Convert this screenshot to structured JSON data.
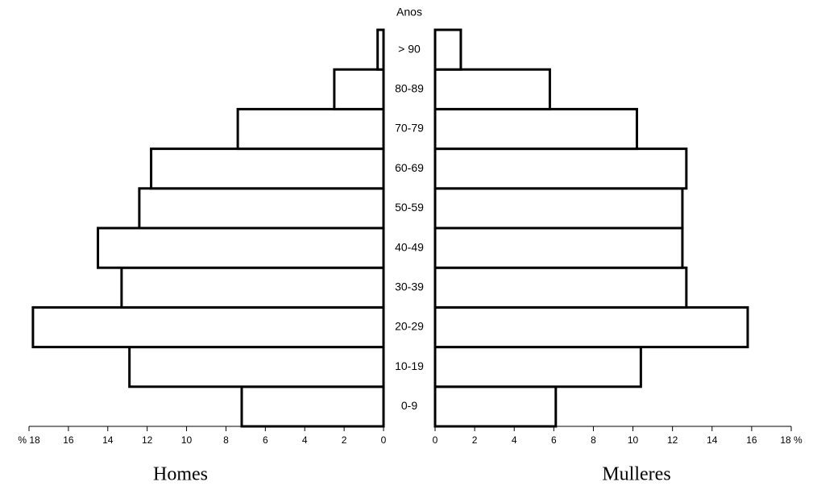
{
  "chart_data": {
    "type": "pyramid",
    "category_title": "Anos",
    "categories": [
      "0-9",
      "10-19",
      "20-29",
      "30-39",
      "40-49",
      "50-59",
      "60-69",
      "70-79",
      "80-89",
      "> 90"
    ],
    "series": [
      {
        "name": "Homes",
        "color": "#ffffff",
        "values": [
          7.2,
          12.9,
          17.8,
          13.3,
          14.5,
          12.4,
          11.8,
          7.4,
          2.5,
          0.3
        ],
        "xlim": [
          18,
          0
        ],
        "xticks": [
          {
            "value": 18,
            "label": "% 18"
          },
          16,
          14,
          12,
          10,
          8,
          6,
          4,
          2,
          0
        ]
      },
      {
        "name": "Mulleres",
        "color": "#ffffff",
        "values": [
          6.1,
          10.4,
          15.8,
          12.7,
          12.5,
          12.5,
          12.7,
          10.2,
          5.8,
          1.3
        ],
        "xlim": [
          0,
          18
        ],
        "xticks": [
          0,
          2,
          4,
          6,
          8,
          10,
          12,
          14,
          16,
          {
            "value": 18,
            "label": "18 %"
          }
        ]
      }
    ]
  }
}
